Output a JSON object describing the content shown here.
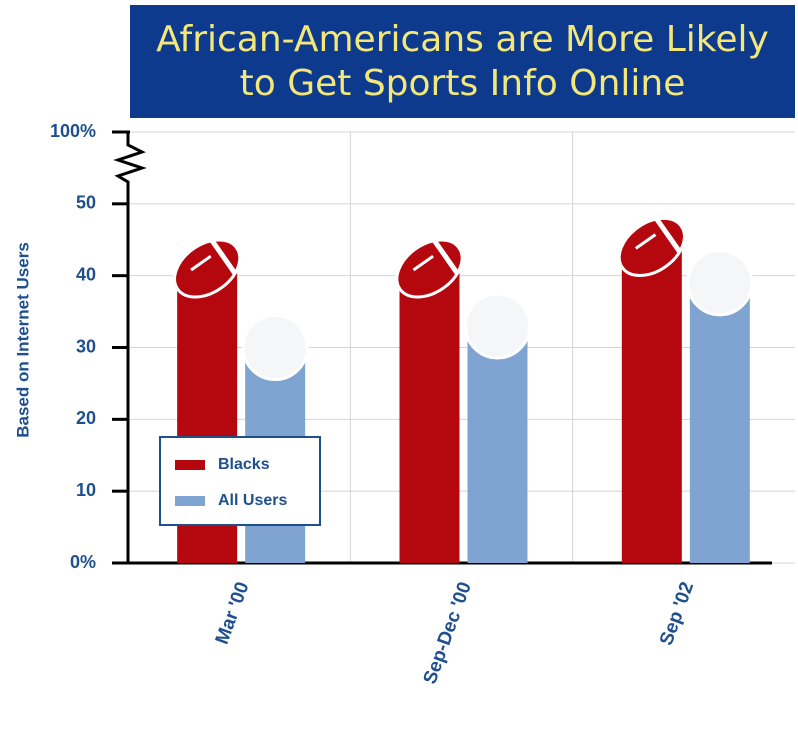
{
  "chart_data": {
    "type": "bar",
    "title": "African-Americans are More Likely to Get Sports Info Online",
    "y_label": "Based on Internet Users",
    "categories": [
      "Mar '00",
      "Sep-Dec '00",
      "Sep '02"
    ],
    "series": [
      {
        "name": "Blacks",
        "color": "#b5080e",
        "values": [
          41,
          41,
          44
        ]
      },
      {
        "name": "All Users",
        "color": "#7fa4d2",
        "values": [
          30,
          33,
          39
        ]
      }
    ],
    "ylim": [
      0,
      60
    ],
    "yticks": [
      {
        "value": 0,
        "label": "0%"
      },
      10,
      20,
      30,
      40,
      50
    ],
    "ybreak": {
      "value": 100,
      "label": "100%"
    },
    "grid": true,
    "legend": "lower left"
  }
}
